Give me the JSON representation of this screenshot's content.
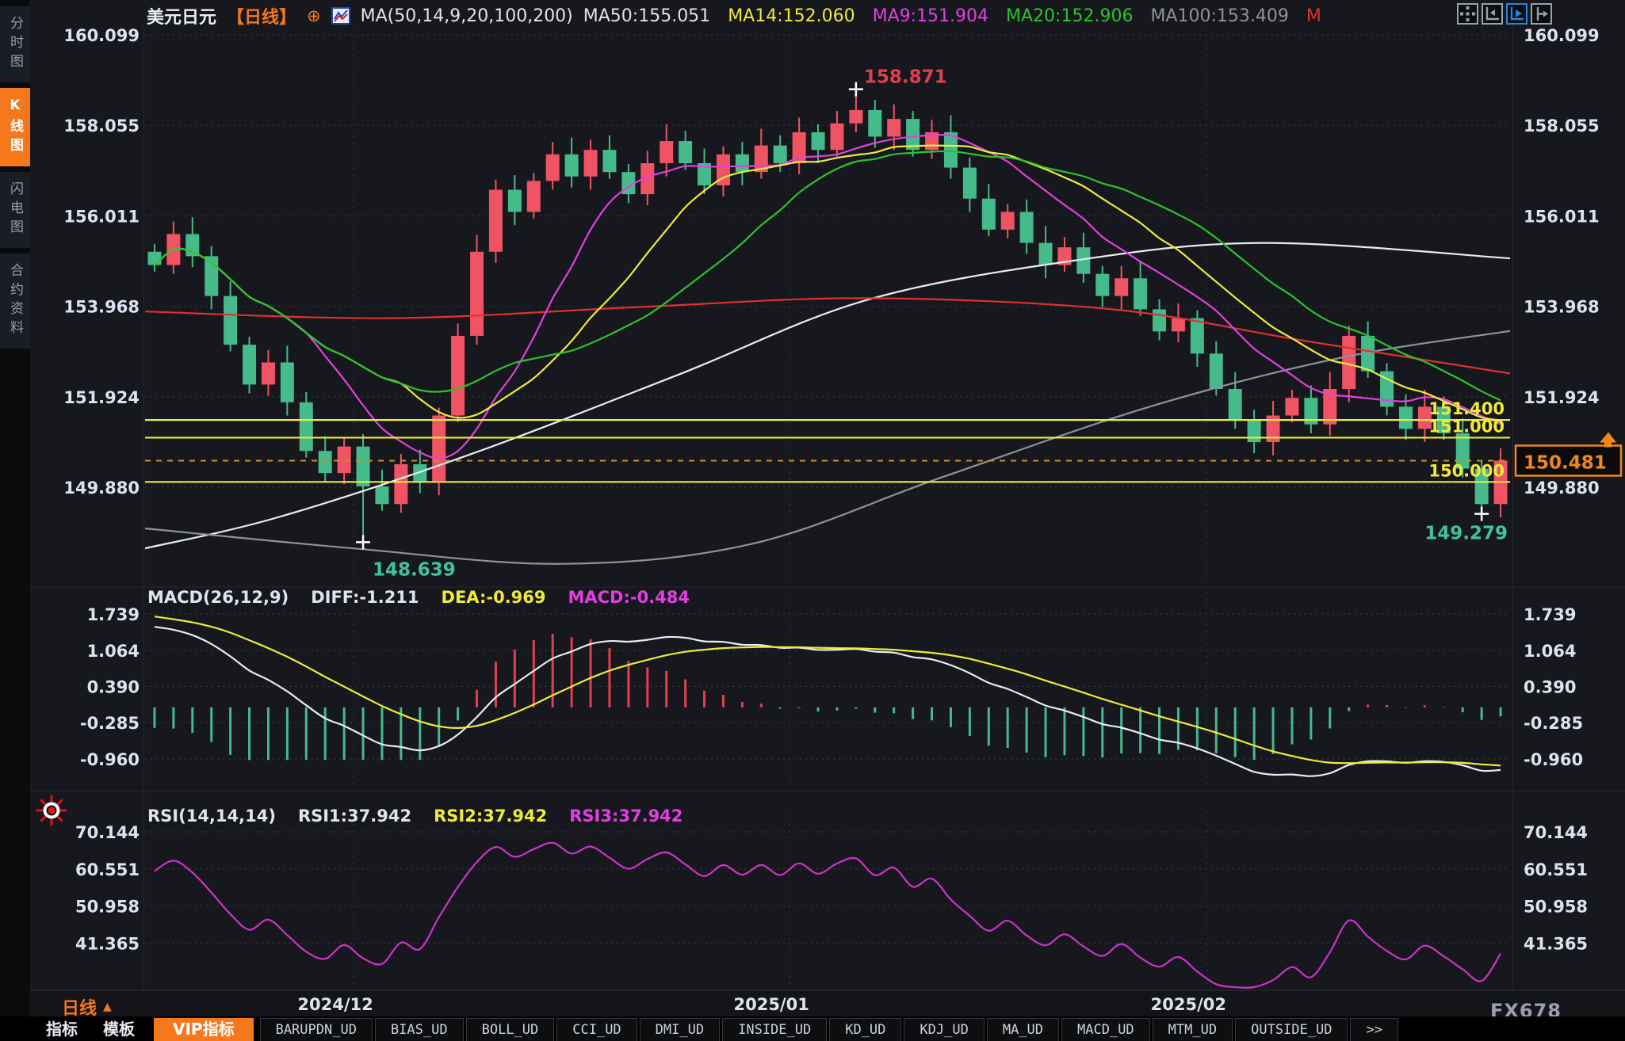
{
  "colors": {
    "accent_orange": "#f5781d",
    "candle_up": "#ef5364",
    "candle_down": "#45ba8b",
    "yellow": "#f0ea3a",
    "magenta": "#e23fe2",
    "green": "#2bc42b",
    "white": "#e8ebf0",
    "gray": "#8d929c",
    "red": "#e03030",
    "teal_label": "#3fc49c",
    "red_label": "#e0404e",
    "current_orange": "#f0881c",
    "toolbar_active": "#1e88e5"
  },
  "sidebar": {
    "items": [
      {
        "label": "分时图",
        "active": false
      },
      {
        "label": "K线图",
        "active": true
      },
      {
        "label": "闪电图",
        "active": false
      },
      {
        "label": "合约资料",
        "active": false
      }
    ]
  },
  "header": {
    "symbol": "美元日元",
    "period": "【日线】",
    "plus": "⊕",
    "ma_group": "MA(50,14,9,20,100,200)",
    "ma_values": [
      {
        "text": "MA50:155.051",
        "color": "#dfe3ec"
      },
      {
        "text": "MA14:152.060",
        "color": "#f0ea3a"
      },
      {
        "text": "MA9:151.904",
        "color": "#e23fe2"
      },
      {
        "text": "MA20:152.906",
        "color": "#2bc42b"
      },
      {
        "text": "MA100:153.409",
        "color": "#8d929c"
      },
      {
        "text": "M",
        "color": "#e03030"
      }
    ],
    "toolbar": [
      {
        "name": "pan-crosshair-icon",
        "active": false
      },
      {
        "name": "axis-scale-icon",
        "active": false
      },
      {
        "name": "axis-play-icon",
        "active": true
      },
      {
        "name": "axis-shift-icon",
        "active": false
      }
    ]
  },
  "price_panel": {
    "y_ticks": [
      "160.099",
      "158.055",
      "156.011",
      "153.968",
      "151.924",
      "149.880"
    ],
    "levels": [
      {
        "label": "151.400",
        "value": 151.4
      },
      {
        "label": "151.000",
        "value": 151.0
      },
      {
        "label": "150.000",
        "value": 150.0
      }
    ],
    "current": {
      "label": "150.481",
      "value": 150.481
    },
    "annotations": {
      "high": {
        "label": "158.871",
        "value": 158.871,
        "index": 37
      },
      "low": {
        "label": "148.639",
        "value": 148.639,
        "index": 11
      },
      "recent_low": {
        "label": "149.279",
        "value": 149.279,
        "index": 70
      }
    }
  },
  "macd_panel": {
    "title": "MACD(26,12,9)",
    "diff": "DIFF:-1.211",
    "dea": "DEA:-0.969",
    "macd": "MACD:-0.484",
    "y_ticks": [
      "1.739",
      "1.064",
      "0.390",
      "-0.285",
      "-0.960"
    ]
  },
  "rsi_panel": {
    "title": "RSI(14,14,14)",
    "rsi1": "RSI1:37.942",
    "rsi2": "RSI2:37.942",
    "rsi3": "RSI3:37.942",
    "y_ticks": [
      "70.144",
      "60.551",
      "50.958",
      "41.365"
    ]
  },
  "time_axis": {
    "period": "日线",
    "arrow": "▲",
    "watermark": "FX678"
  },
  "bottom_tabs": [
    {
      "label": "指标",
      "style": "plain"
    },
    {
      "label": "模板",
      "style": "plain"
    },
    {
      "label": "VIP指标",
      "style": "vip"
    },
    {
      "label": "BARUPDN_UD",
      "style": "ud"
    },
    {
      "label": "BIAS_UD",
      "style": "ud"
    },
    {
      "label": "BOLL_UD",
      "style": "ud"
    },
    {
      "label": "CCI_UD",
      "style": "ud"
    },
    {
      "label": "DMI_UD",
      "style": "ud"
    },
    {
      "label": "INSIDE_UD",
      "style": "ud"
    },
    {
      "label": "KD_UD",
      "style": "ud"
    },
    {
      "label": "KDJ_UD",
      "style": "ud"
    },
    {
      "label": "MA_UD",
      "style": "ud"
    },
    {
      "label": "MACD_UD",
      "style": "ud"
    },
    {
      "label": "MTM_UD",
      "style": "ud"
    },
    {
      "label": "OUTSIDE_UD",
      "style": "ud"
    },
    {
      "label": ">>",
      "style": "ud"
    }
  ],
  "chart_data": {
    "type": "candlestick",
    "symbol": "美元日元 (USD/JPY)",
    "period": "日线",
    "closes": [
      154.9,
      155.6,
      155.1,
      154.2,
      153.1,
      152.2,
      152.7,
      151.8,
      150.7,
      150.2,
      150.8,
      149.9,
      149.5,
      150.4,
      150.0,
      151.5,
      153.3,
      155.2,
      156.6,
      156.1,
      156.8,
      157.4,
      156.9,
      157.5,
      157.0,
      156.5,
      157.2,
      157.7,
      157.2,
      156.7,
      157.4,
      157.0,
      157.6,
      157.2,
      157.9,
      157.5,
      158.1,
      158.4,
      157.8,
      158.2,
      157.5,
      157.9,
      157.1,
      156.4,
      155.7,
      156.1,
      155.4,
      154.9,
      155.3,
      154.7,
      154.2,
      154.6,
      153.9,
      153.4,
      153.7,
      152.9,
      152.1,
      151.4,
      150.9,
      151.5,
      151.9,
      151.3,
      152.1,
      153.3,
      152.5,
      151.7,
      151.2,
      151.7,
      151.1,
      150.3,
      149.5,
      150.481
    ],
    "candle_overrides": {
      "11": {
        "low": 148.639
      },
      "37": {
        "high": 158.871
      },
      "70": {
        "low": 149.279
      }
    },
    "month_marks": [
      {
        "index": 11,
        "label": "2024/12"
      },
      {
        "index": 34,
        "label": "2025/01"
      },
      {
        "index": 56,
        "label": "2025/02"
      }
    ],
    "ma_fast": [
      {
        "name": "MA9",
        "window": 9,
        "color_key": "magenta"
      },
      {
        "name": "MA14",
        "window": 14,
        "color_key": "yellow"
      },
      {
        "name": "MA20",
        "window": 20,
        "color_key": "green"
      }
    ],
    "ma_slow": [
      {
        "name": "MA50",
        "color_key": "white",
        "points": [
          [
            0,
            148.5
          ],
          [
            7,
            149.2
          ],
          [
            17,
            150.6
          ],
          [
            28,
            152.4
          ],
          [
            38,
            154.1
          ],
          [
            49,
            155.0
          ],
          [
            59,
            155.4
          ],
          [
            72,
            155.05
          ]
        ]
      },
      {
        "name": "MA100",
        "color_key": "gray",
        "points": [
          [
            0,
            148.95
          ],
          [
            11,
            148.5
          ],
          [
            22,
            148.15
          ],
          [
            32,
            148.6
          ],
          [
            42,
            150.1
          ],
          [
            53,
            151.7
          ],
          [
            63,
            152.8
          ],
          [
            72,
            153.41
          ]
        ]
      },
      {
        "name": "MA200",
        "color_key": "red",
        "points": [
          [
            0,
            153.85
          ],
          [
            13,
            153.7
          ],
          [
            26,
            153.95
          ],
          [
            38,
            154.15
          ],
          [
            51,
            153.9
          ],
          [
            61,
            153.2
          ],
          [
            72,
            152.45
          ]
        ]
      }
    ],
    "price_axis": {
      "tick_values": [
        160.099,
        158.055,
        156.011,
        153.968,
        151.924,
        149.88
      ]
    },
    "macd_axis": {
      "tick_values": [
        1.739,
        1.064,
        0.39,
        -0.285,
        -0.96
      ]
    },
    "rsi_axis": {
      "tick_values": [
        70.144,
        60.551,
        50.958,
        41.365
      ]
    }
  }
}
